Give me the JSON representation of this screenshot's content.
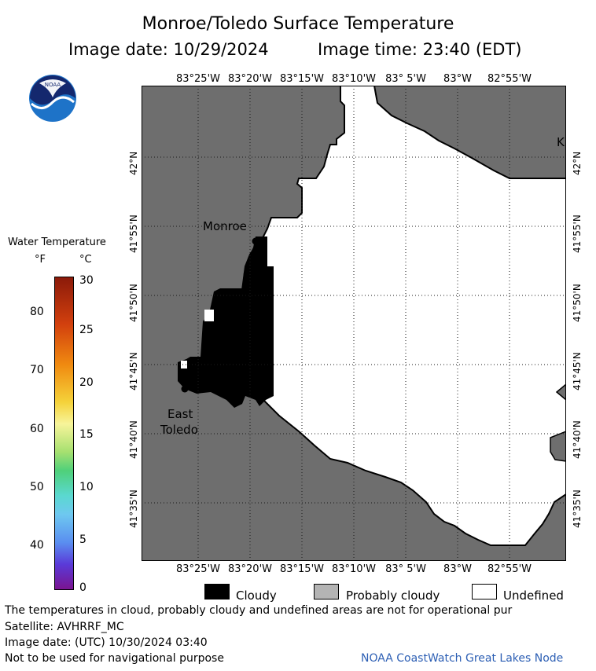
{
  "header": {
    "title": "Monroe/Toledo Surface Temperature",
    "date_label": "Image date: 10/29/2024",
    "time_label": "Image time: 23:40 (EDT)"
  },
  "logo": {
    "text": "NOAA"
  },
  "axes": {
    "lon_ticks": [
      "83°25'W",
      "83°20'W",
      "83°15'W",
      "83°10'W",
      "83° 5'W",
      "83°W",
      "82°55'W"
    ],
    "lat_ticks": [
      "42°N",
      "41°55'N",
      "41°50'N",
      "41°45'N",
      "41°40'N",
      "41°35'N"
    ]
  },
  "places": {
    "monroe": "Monroe",
    "east_toledo_1": "East",
    "east_toledo_2": "Toledo",
    "edge_letter": "K"
  },
  "scale": {
    "title": "Water Temperature",
    "unit_f": "°F",
    "unit_c": "°C",
    "f_ticks": [
      "80",
      "70",
      "60",
      "50",
      "40"
    ],
    "c_ticks": [
      "30",
      "25",
      "20",
      "15",
      "10",
      "5",
      "0"
    ]
  },
  "legend": {
    "cloudy": "Cloudy",
    "probably_cloudy": "Probably cloudy",
    "undefined": "Undefined"
  },
  "footer": {
    "disclaimer": "The temperatures in cloud, probably cloudy and undefined areas are not for operational pur",
    "satellite": "Satellite: AVHRRF_MC",
    "utc_date": "Image date: (UTC) 10/30/2024  03:40",
    "nav_note": "Not to be used for navigational purpose",
    "credit": "NOAA CoastWatch Great Lakes Node"
  },
  "colors": {
    "land": "#6e6e6e",
    "cloud": "#000000",
    "undefined": "#ffffff",
    "probably_cloudy": "#b4b4b4",
    "credit": "#2d5fb4"
  }
}
